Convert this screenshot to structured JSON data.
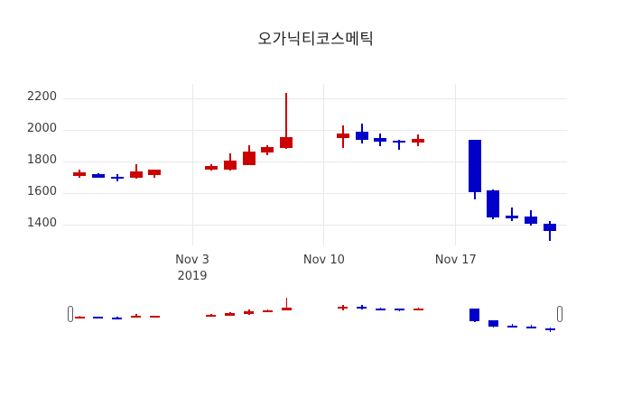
{
  "chart_data": {
    "type": "candlestick",
    "title": "오가닉티코스메틱",
    "legend": "none",
    "grid": true,
    "colors": {
      "increasing": "#cc0000",
      "decreasing": "#0000c8",
      "gridline": "#e9e9e9",
      "tick_text": "#3b3b3b",
      "background": "#ffffff"
    },
    "yaxis": {
      "ticks": [
        2200,
        2000,
        1800,
        1600,
        1400
      ],
      "range": [
        1270,
        2295
      ]
    },
    "xaxis": {
      "ticks": [
        {
          "label": "Nov 3",
          "sublabel": "2019",
          "day": 6
        },
        {
          "label": "Nov 10",
          "sublabel": "",
          "day": 13
        },
        {
          "label": "Nov 17",
          "sublabel": "",
          "day": 20
        }
      ]
    },
    "candles": [
      {
        "date": "Oct 28",
        "day": 0,
        "open": 1710,
        "high": 1750,
        "low": 1695,
        "close": 1730,
        "direction": "up"
      },
      {
        "date": "Oct 29",
        "day": 1,
        "open": 1720,
        "high": 1725,
        "low": 1695,
        "close": 1700,
        "direction": "down"
      },
      {
        "date": "Oct 30",
        "day": 2,
        "open": 1705,
        "high": 1720,
        "low": 1675,
        "close": 1695,
        "direction": "down"
      },
      {
        "date": "Oct 31",
        "day": 3,
        "open": 1695,
        "high": 1785,
        "low": 1690,
        "close": 1740,
        "direction": "up"
      },
      {
        "date": "Nov 1",
        "day": 4,
        "open": 1715,
        "high": 1750,
        "low": 1695,
        "close": 1750,
        "direction": "up"
      },
      {
        "date": "Nov 4",
        "day": 7,
        "open": 1750,
        "high": 1785,
        "low": 1745,
        "close": 1770,
        "direction": "up"
      },
      {
        "date": "Nov 5",
        "day": 8,
        "open": 1750,
        "high": 1850,
        "low": 1745,
        "close": 1805,
        "direction": "up"
      },
      {
        "date": "Nov 6",
        "day": 9,
        "open": 1780,
        "high": 1905,
        "low": 1775,
        "close": 1865,
        "direction": "up"
      },
      {
        "date": "Nov 7",
        "day": 10,
        "open": 1855,
        "high": 1905,
        "low": 1840,
        "close": 1890,
        "direction": "up"
      },
      {
        "date": "Nov 8",
        "day": 11,
        "open": 1885,
        "high": 2235,
        "low": 1880,
        "close": 1955,
        "direction": "up"
      },
      {
        "date": "Nov 11",
        "day": 14,
        "open": 1950,
        "high": 2030,
        "low": 1885,
        "close": 1980,
        "direction": "up"
      },
      {
        "date": "Nov 12",
        "day": 15,
        "open": 1990,
        "high": 2040,
        "low": 1915,
        "close": 1935,
        "direction": "down"
      },
      {
        "date": "Nov 13",
        "day": 16,
        "open": 1950,
        "high": 1975,
        "low": 1900,
        "close": 1925,
        "direction": "down"
      },
      {
        "date": "Nov 14",
        "day": 17,
        "open": 1930,
        "high": 1935,
        "low": 1875,
        "close": 1920,
        "direction": "down"
      },
      {
        "date": "Nov 15",
        "day": 18,
        "open": 1920,
        "high": 1970,
        "low": 1895,
        "close": 1945,
        "direction": "up"
      },
      {
        "date": "Nov 18",
        "day": 21,
        "open": 1940,
        "high": 1940,
        "low": 1560,
        "close": 1605,
        "direction": "down"
      },
      {
        "date": "Nov 19",
        "day": 22,
        "open": 1615,
        "high": 1625,
        "low": 1435,
        "close": 1445,
        "direction": "down"
      },
      {
        "date": "Nov 20",
        "day": 23,
        "open": 1460,
        "high": 1510,
        "low": 1425,
        "close": 1440,
        "direction": "down"
      },
      {
        "date": "Nov 21",
        "day": 24,
        "open": 1450,
        "high": 1490,
        "low": 1395,
        "close": 1405,
        "direction": "down"
      },
      {
        "date": "Nov 22",
        "day": 25,
        "open": 1405,
        "high": 1425,
        "low": 1300,
        "close": 1360,
        "direction": "down"
      }
    ],
    "rangeslider": {
      "present": true,
      "value_range": [
        1300,
        2235
      ],
      "selection": "full"
    }
  }
}
